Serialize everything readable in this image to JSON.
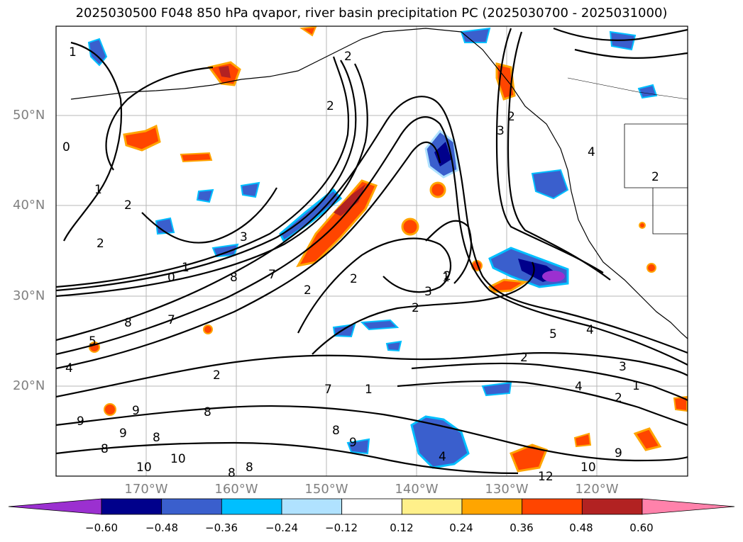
{
  "title": "2025030500 F048 850 hPa qvapor, river basin precipitation PC (2025030700 - 2025031000)",
  "lat_labels": [
    "50°N",
    "40°N",
    "30°N",
    "20°N"
  ],
  "lon_labels": [
    "170°W",
    "160°W",
    "150°W",
    "140°W",
    "130°W",
    "120°W"
  ],
  "colorbar": {
    "ticks": [
      "−0.60",
      "−0.48",
      "−0.36",
      "−0.24",
      "−0.12",
      "0.12",
      "0.24",
      "0.36",
      "0.48",
      "0.60"
    ],
    "colors": [
      "#9b30d0",
      "#00008b",
      "#3a5fcd",
      "#00bfff",
      "#b0e2ff",
      "#ffffff",
      "#fff08a",
      "#ffa500",
      "#ff4500",
      "#b22222",
      "#ff82ab"
    ]
  },
  "contour_labels": [
    "1",
    "2",
    "2",
    "2",
    "0",
    "1",
    "2",
    "2",
    "3",
    "0",
    "1",
    "8",
    "7",
    "2",
    "2",
    "2",
    "1",
    "3",
    "4",
    "2",
    "5",
    "4",
    "2",
    "3",
    "1",
    "2",
    "8",
    "7",
    "5",
    "4",
    "9",
    "9",
    "8",
    "8",
    "9",
    "8",
    "10",
    "10",
    "12",
    "10",
    "9",
    "7",
    "1",
    "8",
    "9",
    "8",
    "8",
    "4",
    "2",
    "2",
    "3",
    "4"
  ]
}
